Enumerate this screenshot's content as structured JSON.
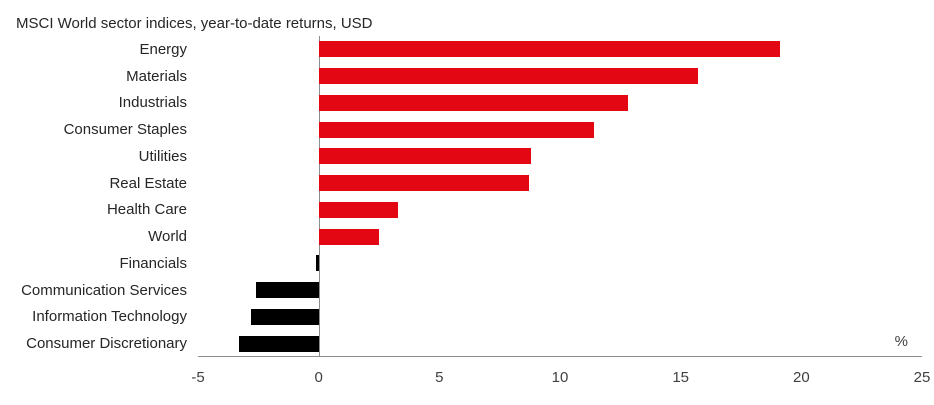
{
  "title": "MSCI World sector indices, year-to-date returns, USD",
  "chart_data": {
    "type": "bar",
    "orientation": "horizontal",
    "title": "MSCI World sector indices, year-to-date returns, USD",
    "categories": [
      "Energy",
      "Materials",
      "Industrials",
      "Consumer Staples",
      "Utilities",
      "Real Estate",
      "Health Care",
      "World",
      "Financials",
      "Communication Services",
      "Information Technology",
      "Consumer Discretionary"
    ],
    "values": [
      19.1,
      15.7,
      12.8,
      11.4,
      8.8,
      8.7,
      3.3,
      2.5,
      -0.1,
      -2.6,
      -2.8,
      -3.3
    ],
    "xlabel": "",
    "ylabel": "",
    "unit_label": "%",
    "xlim": [
      -5,
      25
    ],
    "x_ticks": [
      "-5",
      "0",
      "5",
      "10",
      "15",
      "20",
      "25"
    ],
    "grid": false,
    "legend": false,
    "positive_color": "#e30613",
    "negative_color": "#000000",
    "axis_color": "#8c8c8c",
    "text_color": "#262626",
    "tick_color": "#404040"
  }
}
